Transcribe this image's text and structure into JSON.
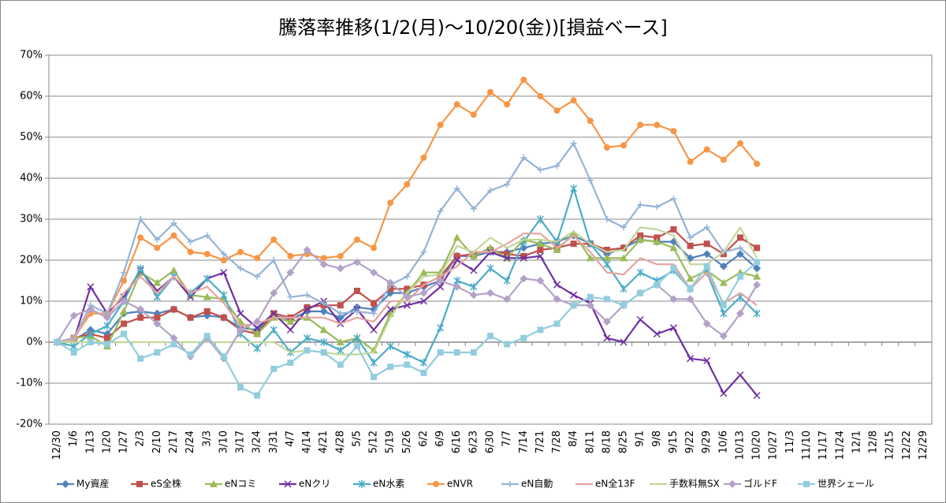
{
  "chart_data": {
    "type": "line",
    "title": "騰落率推移(1/2(月)～10/20(金))[損益ベース]",
    "categories": [
      "12/30",
      "1/6",
      "1/13",
      "1/20",
      "1/27",
      "2/3",
      "2/10",
      "2/17",
      "2/24",
      "3/3",
      "3/10",
      "3/17",
      "3/24",
      "3/31",
      "4/7",
      "4/14",
      "4/21",
      "4/28",
      "5/5",
      "5/12",
      "5/19",
      "5/26",
      "6/2",
      "6/9",
      "6/16",
      "6/23",
      "6/30",
      "7/7",
      "7/14",
      "7/21",
      "7/28",
      "8/4",
      "8/11",
      "8/18",
      "8/25",
      "9/1",
      "9/8",
      "9/15",
      "9/22",
      "9/29",
      "10/6",
      "10/13",
      "10/20",
      "10/27",
      "11/3",
      "11/10",
      "11/17",
      "11/24",
      "12/1",
      "12/8",
      "12/15",
      "12/22",
      "12/29"
    ],
    "ylim": [
      -20,
      70
    ],
    "yticks": [
      {
        "value": -20,
        "label": "-20%"
      },
      {
        "value": -10,
        "label": "-10%"
      },
      {
        "value": 0,
        "label": "0%"
      },
      {
        "value": 10,
        "label": "10%"
      },
      {
        "value": 20,
        "label": "20%"
      },
      {
        "value": 30,
        "label": "30%"
      },
      {
        "value": 40,
        "label": "40%"
      },
      {
        "value": 50,
        "label": "50%"
      },
      {
        "value": 60,
        "label": "60%"
      },
      {
        "value": 70,
        "label": "70%"
      }
    ],
    "grid": true,
    "legend": "bottom",
    "series": [
      {
        "name": "My資産",
        "color": "#4f81bd",
        "marker": "diamond",
        "values": [
          0,
          0.5,
          3,
          2,
          7,
          7.5,
          7,
          8,
          6,
          6.5,
          6,
          3.5,
          3,
          6.5,
          5.5,
          7.5,
          7.5,
          6,
          8.5,
          8,
          12,
          12,
          13.5,
          15,
          21,
          21,
          22,
          22,
          23,
          24,
          24.5,
          26,
          24,
          21.5,
          23,
          25,
          24.5,
          24.5,
          20.5,
          21.5,
          18.5,
          21.5,
          18,
          null,
          null,
          null,
          null,
          null,
          null,
          null,
          null,
          null,
          null
        ]
      },
      {
        "name": "eS全株",
        "color": "#c0504d",
        "marker": "square",
        "values": [
          0,
          1,
          2,
          1,
          4.5,
          6,
          6,
          8,
          6,
          7.5,
          6,
          3,
          2,
          7,
          6,
          8.5,
          9,
          9,
          12.5,
          9.5,
          13,
          13,
          14,
          16,
          21,
          21.5,
          22.5,
          21.5,
          21,
          22.5,
          23,
          24,
          24,
          22.5,
          23,
          26,
          25.5,
          27.5,
          23.5,
          24,
          21.5,
          25.5,
          23,
          null,
          null,
          null,
          null,
          null,
          null,
          null,
          null,
          null,
          null
        ]
      },
      {
        "name": "eNコミ",
        "color": "#9bbb59",
        "marker": "triangle",
        "values": [
          0,
          1,
          1.5,
          -1,
          7.5,
          17,
          14.5,
          17.5,
          11.5,
          11,
          10.5,
          5,
          2,
          6,
          5,
          6,
          3,
          0,
          1,
          -2,
          7,
          12,
          17,
          17,
          25.5,
          21,
          23,
          20.5,
          25,
          24,
          22.5,
          26.5,
          20.5,
          20.5,
          20.5,
          25,
          24.5,
          23,
          15.5,
          17.5,
          14.5,
          17,
          16,
          null,
          null,
          null,
          null,
          null,
          null,
          null,
          null,
          null,
          null
        ]
      },
      {
        "name": "eNクリ",
        "color": "#7030a0",
        "marker": "x",
        "values": [
          0,
          0.5,
          13.5,
          7,
          11,
          17.5,
          12.5,
          16,
          11,
          15.5,
          17,
          7,
          3.5,
          7,
          3,
          8,
          10,
          4.5,
          8,
          3,
          8,
          9,
          10,
          13.5,
          20,
          17.5,
          22,
          20.5,
          20.5,
          21,
          14,
          11.5,
          9.5,
          1,
          0,
          5.5,
          2,
          3.5,
          -4,
          -4.5,
          -12.5,
          -8,
          -13,
          null,
          null,
          null,
          null,
          null,
          null,
          null,
          null,
          null,
          null
        ]
      },
      {
        "name": "eN水素",
        "color": "#4bacc6",
        "marker": "star",
        "values": [
          0,
          -1,
          2,
          4,
          10,
          18,
          11,
          16,
          12,
          15.5,
          11.5,
          2,
          -1.5,
          3,
          -2.5,
          1,
          0,
          -2,
          1,
          -5,
          -1,
          -3,
          -5,
          3.5,
          15,
          13.5,
          18,
          15,
          24.5,
          30,
          24.5,
          37.5,
          24,
          19,
          13,
          17,
          15,
          17.5,
          13,
          17,
          7,
          11,
          7,
          null,
          null,
          null,
          null,
          null,
          null,
          null,
          null,
          null,
          null
        ]
      },
      {
        "name": "eNVR",
        "color": "#f79646",
        "marker": "circle",
        "values": [
          0,
          1,
          7,
          7,
          15,
          25.5,
          23,
          26,
          22,
          21.5,
          20,
          22,
          20.5,
          25,
          21,
          21.5,
          20.5,
          21,
          25,
          23,
          34,
          38.5,
          45,
          53,
          58,
          55.5,
          61,
          58,
          64,
          60,
          56.5,
          59,
          54,
          47.5,
          48,
          53,
          53,
          51.5,
          44,
          47,
          44.5,
          48.5,
          43.5,
          null,
          null,
          null,
          null,
          null,
          null,
          null,
          null,
          null,
          null
        ]
      },
      {
        "name": "eN自動",
        "color": "#95b3d7",
        "marker": "plus",
        "values": [
          0,
          1,
          9,
          7,
          17,
          30,
          25,
          29,
          24.5,
          26,
          21.5,
          18,
          16,
          20,
          11,
          11.5,
          9.5,
          7,
          7.5,
          7,
          14,
          16,
          22,
          32,
          37.5,
          32.5,
          37,
          38.5,
          45,
          42,
          43,
          48.5,
          39.5,
          30,
          28,
          33.5,
          33,
          35,
          25.5,
          28,
          22,
          23,
          19.5,
          null,
          null,
          null,
          null,
          null,
          null,
          null,
          null,
          null,
          null
        ]
      },
      {
        "name": "eN全13F",
        "color": "#e6a4a2",
        "marker": "none",
        "values": [
          0,
          0.5,
          8,
          6,
          12,
          16,
          12,
          16,
          12,
          13.5,
          9.5,
          4,
          4.5,
          6,
          6,
          6,
          6,
          4.5,
          6,
          5,
          10,
          10,
          14,
          16,
          18.5,
          22,
          22,
          24,
          26.5,
          26.5,
          23,
          26,
          22,
          17,
          16.5,
          20.5,
          19,
          19,
          13,
          17,
          9.5,
          12,
          9,
          null,
          null,
          null,
          null,
          null,
          null,
          null,
          null,
          null,
          null
        ]
      },
      {
        "name": "手数料無SX",
        "color": "#c3d69b",
        "marker": "none",
        "values": [
          0,
          0,
          0,
          0,
          0,
          0,
          0,
          0,
          0,
          0,
          0,
          0,
          0,
          0,
          -2.5,
          -2,
          -2.5,
          -3,
          -3,
          -2.5,
          6,
          12,
          16,
          16.5,
          23.5,
          22,
          25.5,
          23,
          25,
          25,
          24.5,
          27,
          24,
          22,
          22.5,
          28,
          27.5,
          26,
          19,
          19,
          22,
          28,
          20.5,
          null,
          null,
          null,
          null,
          null,
          null,
          null,
          null,
          null,
          null
        ]
      },
      {
        "name": "ゴルドF",
        "color": "#b3a2c7",
        "marker": "diamond",
        "values": [
          0,
          6.5,
          8,
          6,
          10,
          8,
          4.5,
          1,
          -3.5,
          1,
          -4,
          3,
          5,
          12,
          17,
          22.5,
          19,
          18,
          19.5,
          17,
          14.5,
          11,
          12,
          15,
          13.5,
          11.5,
          12,
          10.5,
          15.5,
          15,
          10.5,
          9,
          9,
          5,
          9,
          12,
          14,
          10.5,
          10.5,
          4.5,
          1.5,
          7,
          14,
          null,
          null,
          null,
          null,
          null,
          null,
          null,
          null,
          null,
          null
        ]
      },
      {
        "name": "世界シェール",
        "color": "#93cddd",
        "marker": "square",
        "values": [
          0,
          -2.5,
          0,
          -0.5,
          2,
          -4,
          -2.5,
          -0.5,
          -3,
          1.5,
          -3.5,
          -11,
          -13,
          -6.5,
          -5,
          -2,
          -2.5,
          -5.5,
          -1,
          -8.5,
          -6,
          -5.5,
          -7.5,
          -2.5,
          -2.5,
          -2.5,
          1.5,
          -0.5,
          1,
          3,
          4.5,
          9,
          11,
          10.5,
          9,
          12,
          14,
          18,
          13,
          18.5,
          9,
          16,
          19.5,
          null,
          null,
          null,
          null,
          null,
          null,
          null,
          null,
          null,
          null
        ]
      }
    ]
  }
}
